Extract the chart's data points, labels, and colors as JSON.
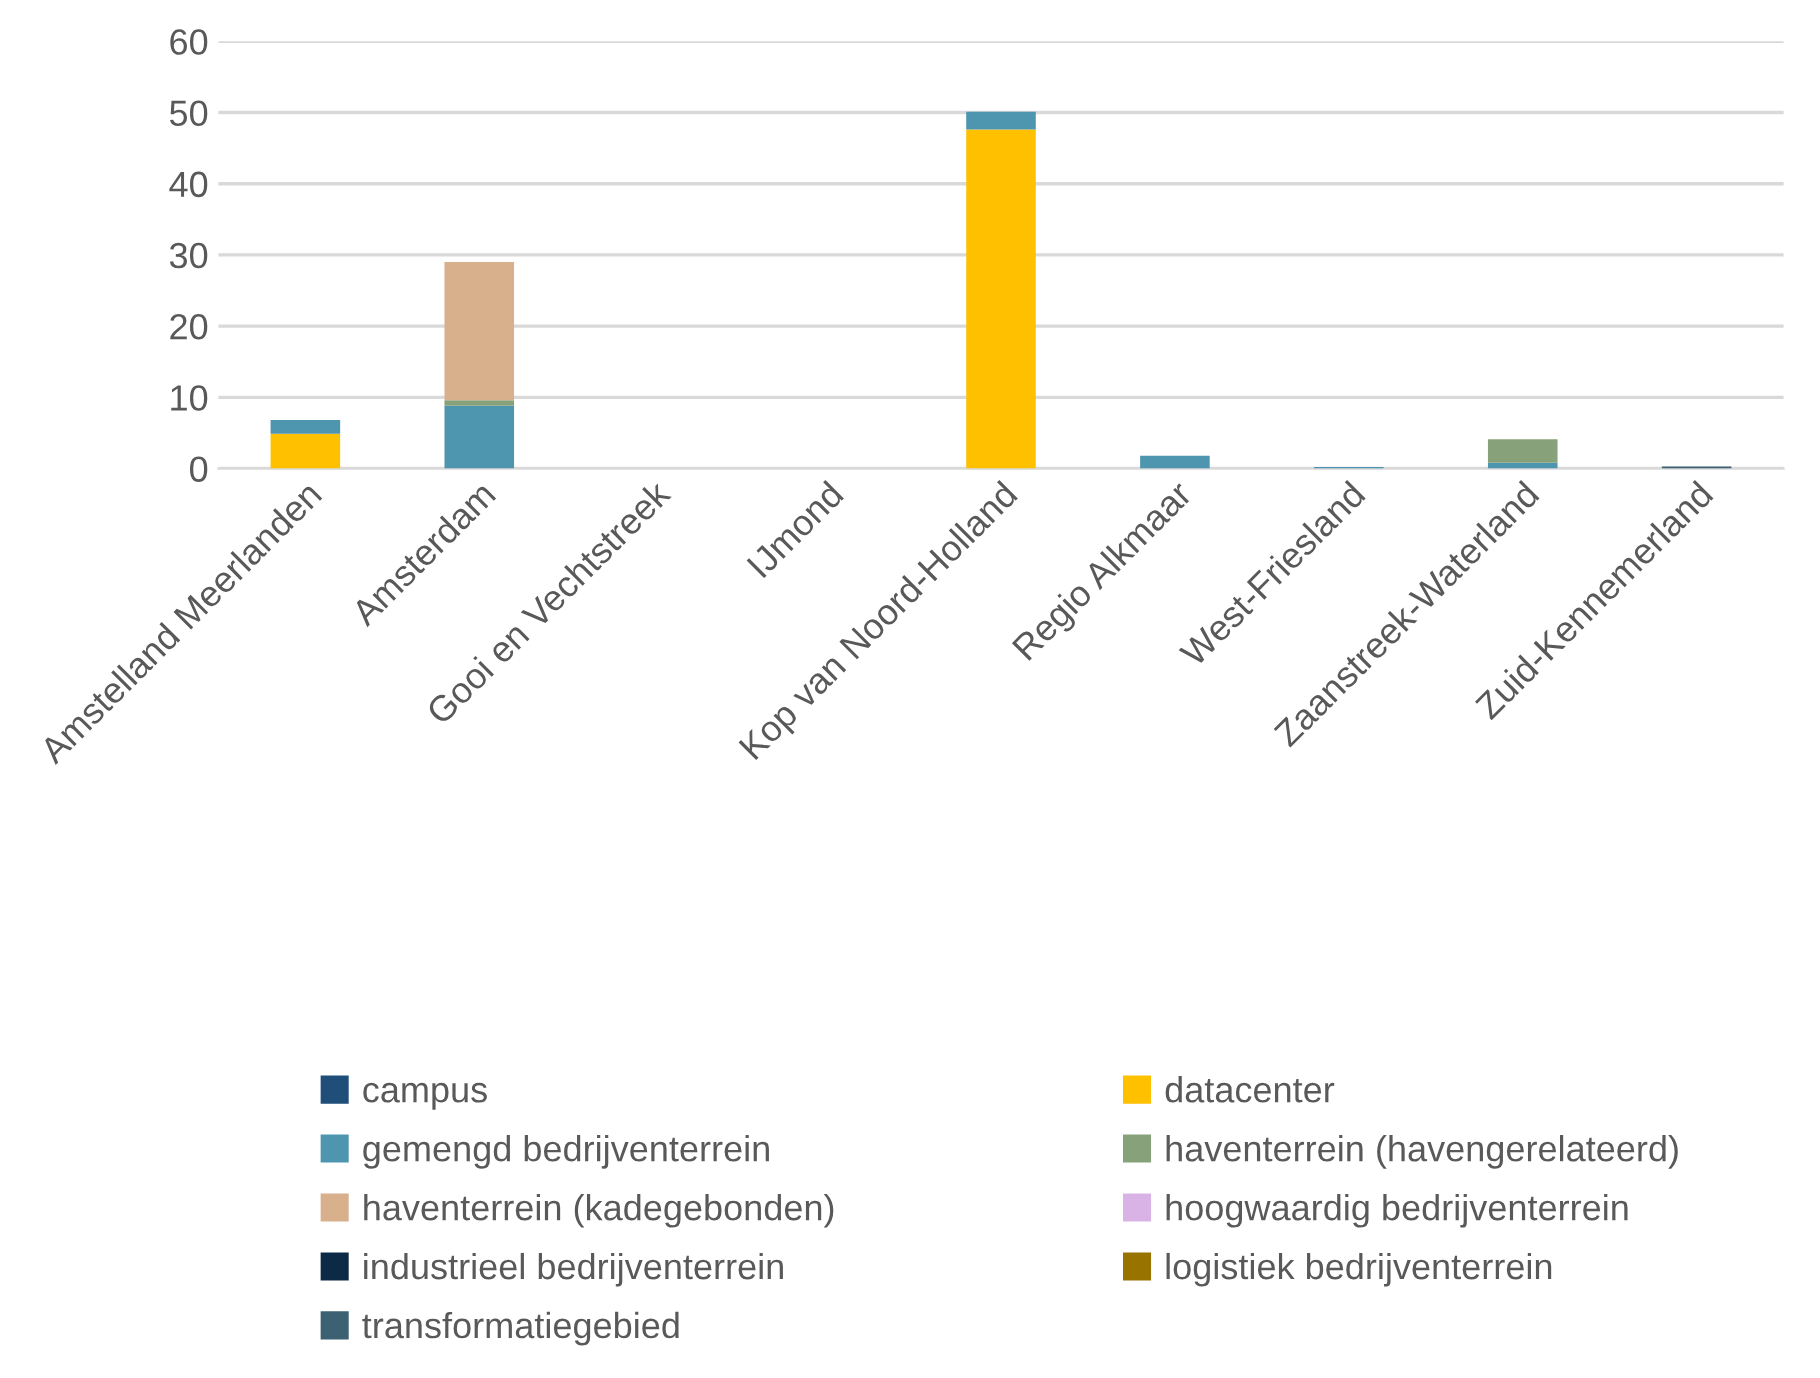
{
  "chart_data": {
    "type": "bar",
    "stacked": true,
    "grid": "y",
    "legend": "bottom",
    "categories": [
      "Amstelland Meerlanden",
      "Amsterdam",
      "Gooi en Vechtstreek",
      "IJmond",
      "Kop van Noord-Holland",
      "Regio Alkmaar",
      "West-Friesland",
      "Zaanstreek-Waterland",
      "Zuid-Kennemerland"
    ],
    "ylim": [
      0,
      60
    ],
    "yticks": [
      0,
      10,
      20,
      30,
      40,
      50,
      60
    ],
    "series": [
      {
        "name": "campus",
        "color": "#1f4e79",
        "values": [
          0,
          0,
          0,
          0,
          0,
          0,
          0,
          0,
          0
        ]
      },
      {
        "name": "datacenter",
        "color": "#ffc000",
        "values": [
          4.9,
          0,
          0,
          0,
          47.6,
          0,
          0,
          0,
          0
        ]
      },
      {
        "name": "gemengd bedrijventerrein",
        "color": "#4e95b0",
        "values": [
          1.9,
          8.8,
          0,
          0,
          2.5,
          1.8,
          0.2,
          0.8,
          0
        ]
      },
      {
        "name": "haventerrein (havengerelateerd)",
        "color": "#87a27a",
        "values": [
          0,
          0.8,
          0,
          0,
          0,
          0,
          0,
          3.3,
          0
        ]
      },
      {
        "name": "haventerrein (kadegebonden)",
        "color": "#d9b08c",
        "values": [
          0,
          19.4,
          0,
          0,
          0,
          0,
          0,
          0,
          0
        ]
      },
      {
        "name": "hoogwaardig bedrijventerrein",
        "color": "#d9b3e6",
        "values": [
          0,
          0,
          0,
          0,
          0,
          0,
          0,
          0,
          0
        ]
      },
      {
        "name": "industrieel bedrijventerrein",
        "color": "#0c2a46",
        "values": [
          0,
          0,
          0,
          0,
          0,
          0,
          0,
          0,
          0
        ]
      },
      {
        "name": "logistiek bedrijventerrein",
        "color": "#997300",
        "values": [
          0,
          0,
          0,
          0,
          0,
          0,
          0,
          0,
          0
        ]
      },
      {
        "name": "transformatiegebied",
        "color": "#3b6172",
        "values": [
          0,
          0,
          0,
          0,
          0,
          0,
          0,
          0,
          0.3
        ]
      }
    ]
  }
}
